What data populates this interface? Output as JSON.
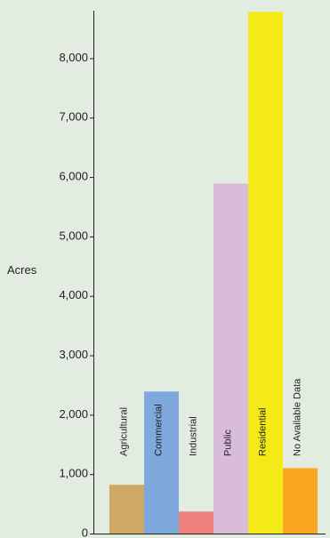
{
  "chart_data": {
    "type": "bar",
    "categories": [
      "Agricultural",
      "Commercial",
      "Industrial",
      "Public",
      "Residential",
      "No Available Data"
    ],
    "values": [
      820,
      2390,
      370,
      5890,
      8780,
      1100
    ],
    "colors": [
      "#cfa866",
      "#7fa9dc",
      "#f07f7f",
      "#d9bcd9",
      "#f4ea17",
      "#f9a71f"
    ],
    "ylabel": "Acres",
    "xlabel": "",
    "title": "",
    "ylim": [
      0,
      8800
    ],
    "yticks": [
      0,
      1000,
      2000,
      3000,
      4000,
      5000,
      6000,
      7000,
      8000
    ],
    "ytick_labels": [
      "0",
      "1,000",
      "2,000",
      "3,000",
      "4,000",
      "5,000",
      "6,000",
      "7,000",
      "8,000"
    ],
    "grid": false,
    "legend": "none"
  }
}
